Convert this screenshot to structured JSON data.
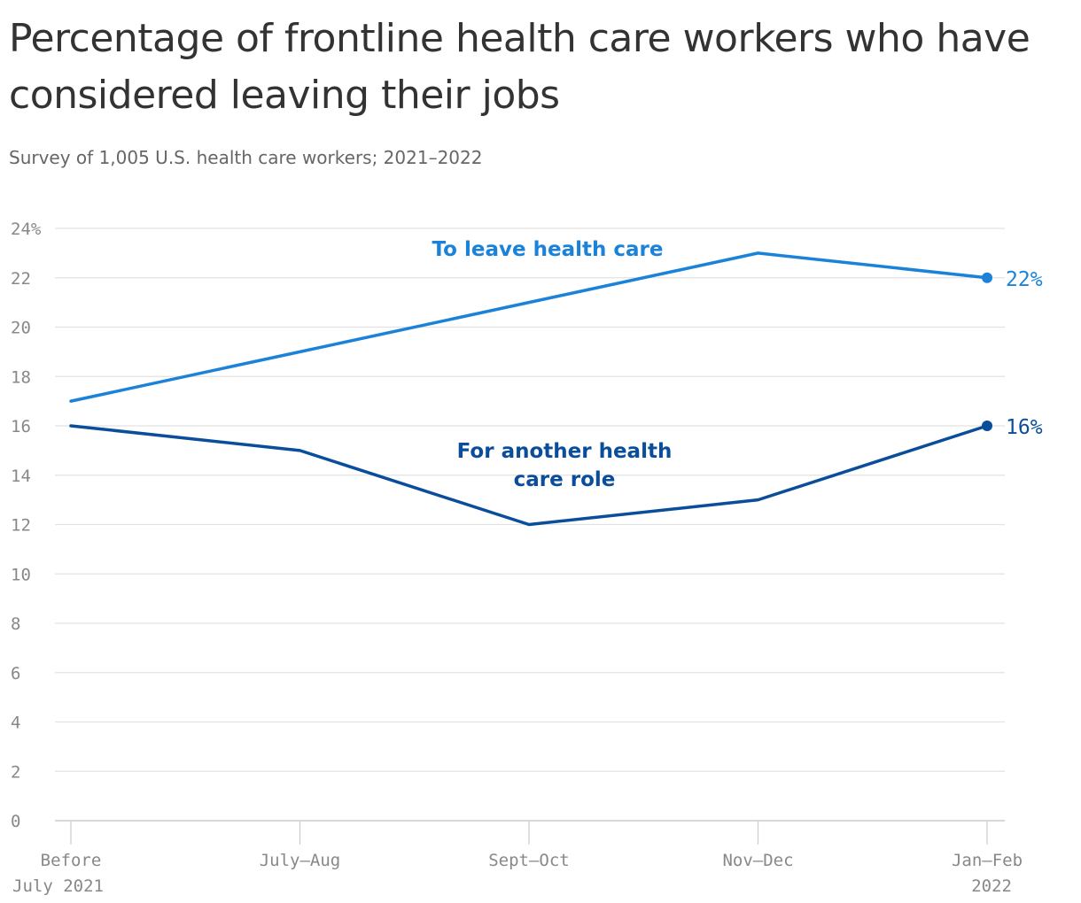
{
  "title": "Percentage of frontline health care workers who have considered leaving their jobs",
  "subtitle": "Survey of 1,005 U.S. health care workers; 2021–2022",
  "chart_data": {
    "type": "line",
    "title": "Percentage of frontline health care workers who have considered leaving their jobs",
    "subtitle": "Survey of 1,005 U.S. health care workers; 2021–2022",
    "categories": [
      [
        "Before",
        "July 2021"
      ],
      [
        "July–Aug"
      ],
      [
        "Sept–Oct"
      ],
      [
        "Nov–Dec"
      ],
      [
        "Jan–Feb",
        "2022"
      ]
    ],
    "ylim": [
      0,
      24
    ],
    "yticks": [
      0,
      2,
      4,
      6,
      8,
      10,
      12,
      14,
      16,
      18,
      20,
      22,
      24
    ],
    "ytick_labels": [
      "0",
      "2",
      "4",
      "6",
      "8",
      "10",
      "12",
      "14",
      "16",
      "18",
      "20",
      "22",
      "24%"
    ],
    "grid": true,
    "series": [
      {
        "name": "To leave health care",
        "label_lines": [
          "To leave health care"
        ],
        "values": [
          17,
          19,
          21,
          23,
          22
        ],
        "end_label": "22%",
        "color": "#1a83d9"
      },
      {
        "name": "For another health care role",
        "label_lines": [
          "For another health",
          "care role"
        ],
        "values": [
          16,
          15,
          12,
          13,
          16
        ],
        "end_label": "16%",
        "color": "#0a4e9b"
      }
    ]
  }
}
